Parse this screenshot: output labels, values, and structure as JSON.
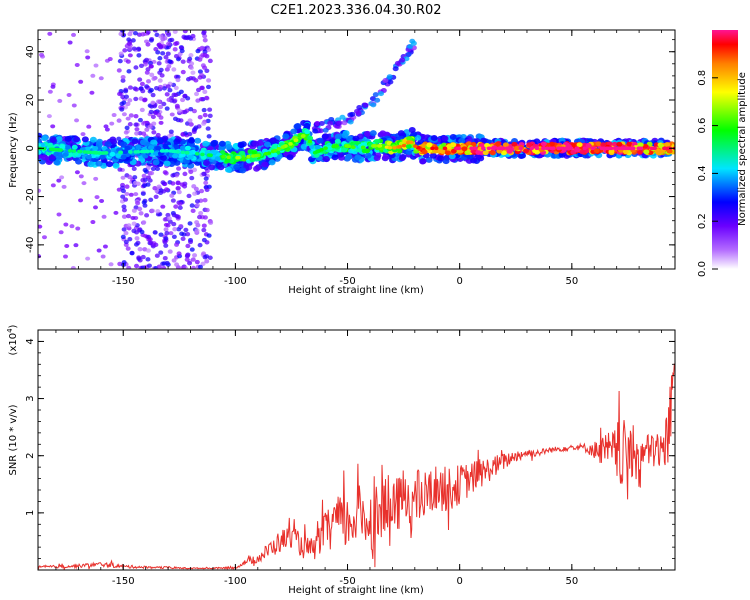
{
  "title": "C2E1.2023.336.04.30.R02",
  "chart_data": [
    {
      "type": "heatmap",
      "xlabel": "Height of straight line (km)",
      "ylabel": "Frequency (Hz)",
      "xlim": [
        -188,
        96
      ],
      "ylim": [
        -50,
        49
      ],
      "xticks": [
        -150,
        -100,
        -50,
        0,
        50
      ],
      "yticks": [
        -40,
        -20,
        0,
        20,
        40
      ],
      "colorbar": {
        "label": "Normalized spectral amplitude",
        "range": [
          0,
          1
        ],
        "ticks": [
          "0.0",
          "0.2",
          "0.4",
          "0.6",
          "0.8"
        ],
        "colormap": [
          "#ffffff",
          "#7d00ff",
          "#0000ff",
          "#00ffff",
          "#00ff00",
          "#ffff00",
          "#ff0000",
          "#ff1493"
        ]
      },
      "ridge": {
        "x": [
          -188,
          -160,
          -130,
          -110,
          -100,
          -90,
          -85,
          -80,
          -75,
          -72,
          -68,
          -65,
          -60,
          -55,
          -50,
          -45,
          -40,
          -35,
          -30,
          -25,
          -22,
          -20,
          -18,
          -15,
          -10,
          -5,
          0,
          10,
          30,
          50,
          70,
          96
        ],
        "y": [
          0,
          -2,
          -1,
          -3,
          -4,
          -3,
          -2,
          0,
          2,
          4,
          6,
          -2,
          0,
          1,
          1,
          0,
          1,
          1,
          0,
          1,
          3,
          1,
          0,
          0,
          0,
          0,
          0,
          0,
          0,
          0,
          0,
          0
        ],
        "amp": [
          0.45,
          0.4,
          0.35,
          0.45,
          0.6,
          0.55,
          0.5,
          0.55,
          0.6,
          0.6,
          0.55,
          0.45,
          0.5,
          0.5,
          0.55,
          0.5,
          0.55,
          0.6,
          0.7,
          0.75,
          0.7,
          0.75,
          0.85,
          0.85,
          0.8,
          0.85,
          0.9,
          0.95,
          0.97,
          0.97,
          0.95,
          0.85
        ]
      },
      "rising_branch": {
        "x": [
          -65,
          -50,
          -40,
          -30,
          -20
        ],
        "y": [
          8,
          12,
          18,
          30,
          44
        ],
        "amp": 0.3
      },
      "scatter_band": {
        "x": [
          -152,
          -111
        ],
        "amp": 0.2
      }
    },
    {
      "type": "line",
      "xlabel": "Height of straight line (km)",
      "ylabel": "SNR (10 * v/v)",
      "scale_label": "(x10",
      "scale_exponent": "4",
      "scale_suffix": ")",
      "xlim": [
        -188,
        96
      ],
      "ylim": [
        0,
        4.2
      ],
      "xticks": [
        -150,
        -100,
        -50,
        0,
        50
      ],
      "yticks": [
        1,
        2,
        3,
        4
      ],
      "color": "#e8312c",
      "series": [
        {
          "x": [
            -188,
            -170,
            -160,
            -150,
            -140,
            -130,
            -120,
            -110,
            -100,
            -95,
            -90,
            -85,
            -80,
            -75,
            -70,
            -65,
            -60,
            -55,
            -50,
            -45,
            -40,
            -35,
            -30,
            -25,
            -20,
            -15,
            -10,
            -5,
            0,
            5,
            10,
            15,
            20,
            25,
            30,
            35,
            40,
            45,
            50,
            55,
            60,
            65,
            70,
            75,
            80,
            85,
            90,
            93,
            96
          ],
          "y": [
            0.05,
            0.07,
            0.1,
            0.06,
            0.05,
            0.04,
            0.03,
            0.03,
            0.04,
            0.15,
            0.2,
            0.35,
            0.5,
            0.6,
            0.4,
            0.35,
            0.7,
            0.9,
            0.8,
            1.0,
            0.85,
            1.1,
            1.0,
            1.3,
            1.2,
            1.3,
            1.45,
            1.4,
            1.5,
            1.6,
            1.7,
            1.8,
            1.9,
            2.0,
            2.05,
            2.05,
            2.1,
            2.12,
            2.15,
            2.15,
            2.1,
            2.1,
            2.0,
            2.0,
            2.0,
            2.1,
            2.1,
            2.3,
            3.8
          ],
          "noise": [
            0.02,
            0.03,
            0.04,
            0.03,
            0.02,
            0.02,
            0.01,
            0.01,
            0.02,
            0.05,
            0.08,
            0.15,
            0.2,
            0.2,
            0.2,
            0.2,
            0.3,
            0.4,
            0.5,
            0.5,
            0.55,
            0.55,
            0.5,
            0.5,
            0.55,
            0.45,
            0.4,
            0.4,
            0.35,
            0.3,
            0.25,
            0.2,
            0.15,
            0.1,
            0.08,
            0.06,
            0.05,
            0.05,
            0.05,
            0.06,
            0.15,
            0.3,
            0.5,
            0.7,
            0.35,
            0.3,
            0.4,
            0.6,
            0.6
          ]
        }
      ]
    }
  ]
}
